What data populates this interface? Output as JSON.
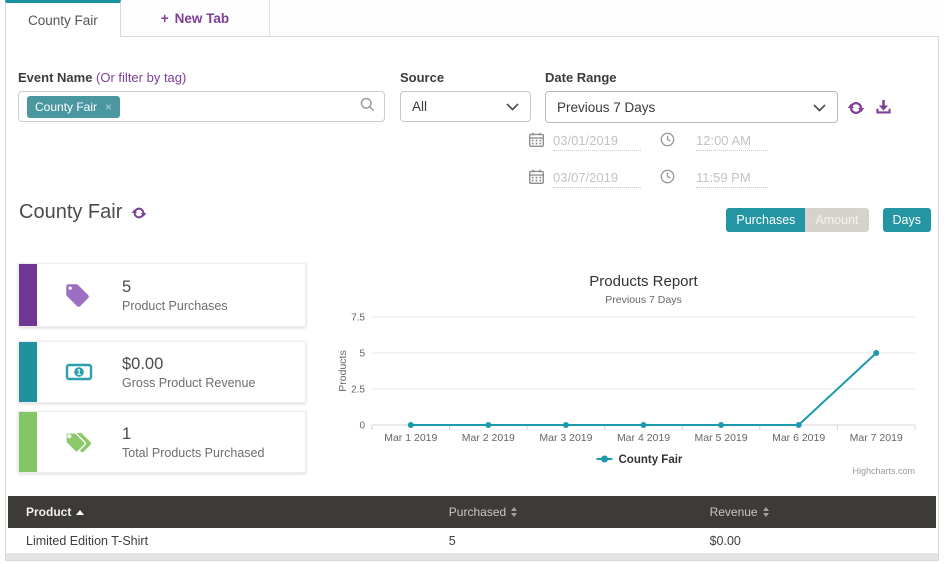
{
  "tabs": {
    "active_label": "County Fair",
    "new_tab_plus": "+",
    "new_tab_label": "New Tab"
  },
  "filters": {
    "event_name_label": "Event Name",
    "event_name_hint": "(Or filter by tag)",
    "event_tag": "County Fair",
    "tag_remove": "×",
    "source_label": "Source",
    "source_value": "All",
    "date_range_label": "Date Range",
    "date_range_value": "Previous 7 Days",
    "start_date": "03/01/2019",
    "start_time": "12:00 AM",
    "end_date": "03/07/2019",
    "end_time": "11:59 PM"
  },
  "header": {
    "title": "County Fair"
  },
  "view_toggles": {
    "purchases": "Purchases",
    "amount": "Amount",
    "days": "Days"
  },
  "stats": [
    {
      "value": "5",
      "label": "Product Purchases",
      "bar_color": "#6e3794",
      "icon": "tag-icon"
    },
    {
      "value": "$0.00",
      "label": "Gross Product Revenue",
      "bar_color": "#2191a0",
      "icon": "banknote-icon"
    },
    {
      "value": "1",
      "label": "Total Products Purchased",
      "bar_color": "#84c564",
      "icon": "tags-icon"
    }
  ],
  "chart_data": {
    "type": "line",
    "title": "Products Report",
    "subtitle": "Previous 7 Days",
    "ylabel": "Products",
    "ylim": [
      0,
      7.5
    ],
    "yticks": [
      0,
      2.5,
      5,
      7.5
    ],
    "grid": true,
    "legend_position": "bottom",
    "categories": [
      "Mar 1 2019",
      "Mar 2 2019",
      "Mar 3 2019",
      "Mar 4 2019",
      "Mar 5 2019",
      "Mar 6 2019",
      "Mar 7 2019"
    ],
    "series": [
      {
        "name": "County Fair",
        "values": [
          0,
          0,
          0,
          0,
          0,
          0,
          5
        ],
        "color": "#1d9aad"
      }
    ],
    "credits": "Highcharts.com"
  },
  "table": {
    "columns": [
      {
        "label": "Product",
        "sort": "ascending"
      },
      {
        "label": "Purchased",
        "sort": "sortable"
      },
      {
        "label": "Revenue",
        "sort": "sortable"
      }
    ],
    "rows": [
      [
        "Limited Edition T-Shirt",
        "5",
        "$0.00"
      ]
    ]
  },
  "colors": {
    "teal": "#2395a3",
    "purple": "#7d3f98",
    "green": "#84c564",
    "table_header": "#3d3b38",
    "tab_accent": "#17929e"
  }
}
